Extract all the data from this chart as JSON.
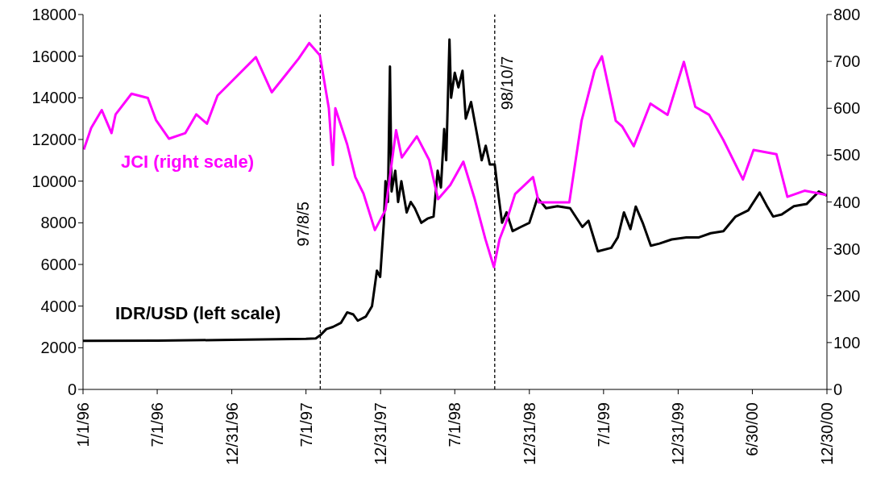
{
  "chart_data": {
    "type": "line",
    "xlim": [
      "1996-01-01",
      "2000-12-30"
    ],
    "xticks": [
      {
        "value": "1996-01-01",
        "label": "1/1/96"
      },
      {
        "value": "1996-07-01",
        "label": "7/1/96"
      },
      {
        "value": "1996-12-31",
        "label": "12/31/96"
      },
      {
        "value": "1997-07-01",
        "label": "7/1/97"
      },
      {
        "value": "1997-12-31",
        "label": "12/31/97"
      },
      {
        "value": "1998-07-01",
        "label": "7/1/98"
      },
      {
        "value": "1998-12-31",
        "label": "12/31/98"
      },
      {
        "value": "1999-07-01",
        "label": "7/1/99"
      },
      {
        "value": "1999-12-31",
        "label": "12/31/99"
      },
      {
        "value": "2000-06-30",
        "label": "6/30/00"
      },
      {
        "value": "2000-12-30",
        "label": "12/30/00"
      }
    ],
    "ylim": [
      0,
      18000
    ],
    "yticks": [
      0,
      2000,
      4000,
      6000,
      8000,
      10000,
      12000,
      14000,
      16000,
      18000
    ],
    "y2lim": [
      0,
      800
    ],
    "y2ticks": [
      0,
      100,
      200,
      300,
      400,
      500,
      600,
      700,
      800
    ],
    "ref_lines": [
      {
        "axis": "x",
        "value": "1997-08-05",
        "label": "97/8/5",
        "line_style": "dashed",
        "color": "#000000"
      },
      {
        "axis": "x",
        "value": "1998-10-07",
        "label": "98/10/7",
        "line_style": "dashed",
        "color": "#000000"
      }
    ],
    "series": [
      {
        "name": "IDR/USD (left scale)",
        "color": "#000000",
        "x": [
          "1996-01-01",
          "1996-07-01",
          "1997-01-01",
          "1997-07-01",
          "1997-07-25",
          "1997-08-05",
          "1997-08-20",
          "1997-09-05",
          "1997-09-25",
          "1997-10-10",
          "1997-10-25",
          "1997-11-05",
          "1997-11-25",
          "1997-12-10",
          "1997-12-22",
          "1997-12-30",
          "1998-01-08",
          "1998-01-12",
          "1998-01-18",
          "1998-01-23",
          "1998-01-27",
          "1998-02-05",
          "1998-02-12",
          "1998-02-20",
          "1998-03-05",
          "1998-03-15",
          "1998-03-25",
          "1998-04-10",
          "1998-04-25",
          "1998-05-10",
          "1998-05-20",
          "1998-05-28",
          "1998-06-05",
          "1998-06-10",
          "1998-06-18",
          "1998-06-22",
          "1998-07-01",
          "1998-07-10",
          "1998-07-20",
          "1998-07-28",
          "1998-08-10",
          "1998-08-25",
          "1998-09-05",
          "1998-09-15",
          "1998-09-25",
          "1998-10-07",
          "1998-10-15",
          "1998-10-25",
          "1998-11-05",
          "1998-11-20",
          "1998-12-10",
          "1998-12-31",
          "1999-01-20",
          "1999-02-10",
          "1999-03-10",
          "1999-04-10",
          "1999-05-10",
          "1999-05-25",
          "1999-06-17",
          "1999-07-20",
          "1999-08-05",
          "1999-08-20",
          "1999-09-05",
          "1999-09-18",
          "1999-10-05",
          "1999-10-25",
          "1999-11-15",
          "1999-12-15",
          "2000-01-20",
          "2000-02-20",
          "2000-03-20",
          "2000-04-20",
          "2000-05-20",
          "2000-06-20",
          "2000-07-18",
          "2000-08-05",
          "2000-08-20",
          "2000-09-10",
          "2000-10-10",
          "2000-11-10",
          "2000-12-10",
          "2000-12-30"
        ],
        "values": [
          2330,
          2340,
          2380,
          2430,
          2450,
          2600,
          2900,
          3000,
          3200,
          3700,
          3600,
          3300,
          3500,
          4000,
          5700,
          5400,
          8000,
          10000,
          9000,
          15500,
          9500,
          10500,
          9000,
          10000,
          8500,
          9000,
          8700,
          8000,
          8200,
          8300,
          10500,
          9700,
          12500,
          11000,
          16800,
          14000,
          15200,
          14500,
          15300,
          13000,
          13800,
          12200,
          11000,
          11700,
          10800,
          10800,
          9500,
          8000,
          8500,
          7600,
          7800,
          8000,
          9200,
          8700,
          8800,
          8700,
          7800,
          8100,
          6630,
          6800,
          7300,
          8500,
          7700,
          8780,
          8000,
          6900,
          7000,
          7200,
          7300,
          7300,
          7500,
          7600,
          8300,
          8600,
          9450,
          8800,
          8300,
          8400,
          8800,
          8900,
          9500,
          9300
        ]
      },
      {
        "name": "JCI (right scale)",
        "color": "#ff00ff",
        "axis": "y2",
        "x": [
          "1996-01-03",
          "1996-01-21",
          "1996-02-16",
          "1996-03-11",
          "1996-03-21",
          "1996-04-29",
          "1996-06-08",
          "1996-06-28",
          "1996-07-30",
          "1996-09-08",
          "1996-10-05",
          "1996-10-31",
          "1996-11-26",
          "1997-01-05",
          "1997-02-28",
          "1997-04-08",
          "1997-05-12",
          "1997-06-13",
          "1997-07-09",
          "1997-08-04",
          "1997-08-26",
          "1997-09-05",
          "1997-09-11",
          "1997-10-10",
          "1997-10-30",
          "1997-11-19",
          "1997-12-17",
          "1998-01-12",
          "1998-02-07",
          "1998-02-21",
          "1998-03-30",
          "1998-04-29",
          "1998-05-21",
          "1998-06-20",
          "1998-07-22",
          "1998-08-19",
          "1998-09-14",
          "1998-10-05",
          "1998-10-19",
          "1998-11-04",
          "1998-11-26",
          "1999-01-09",
          "1999-01-23",
          "1999-03-12",
          "1999-04-08",
          "1999-05-08",
          "1999-06-09",
          "1999-06-27",
          "1999-07-31",
          "1999-08-16",
          "1999-09-13",
          "1999-10-24",
          "1999-12-05",
          "2000-01-14",
          "2000-02-11",
          "2000-03-16",
          "2000-04-20",
          "2000-06-07",
          "2000-07-03",
          "2000-08-28",
          "2000-09-24",
          "2000-11-05",
          "2000-12-29"
        ],
        "values": [
          512,
          558,
          596,
          547,
          587,
          631,
          622,
          575,
          535,
          547,
          587,
          567,
          627,
          662,
          709,
          634,
          671,
          706,
          739,
          713,
          600,
          479,
          600,
          523,
          453,
          418,
          340,
          383,
          553,
          495,
          540,
          490,
          406,
          436,
          486,
          406,
          321,
          261,
          321,
          357,
          417,
          453,
          399,
          399,
          399,
          573,
          681,
          711,
          573,
          561,
          519,
          610,
          586,
          699,
          603,
          586,
          532,
          448,
          511,
          502,
          411,
          424,
          415
        ]
      }
    ]
  }
}
